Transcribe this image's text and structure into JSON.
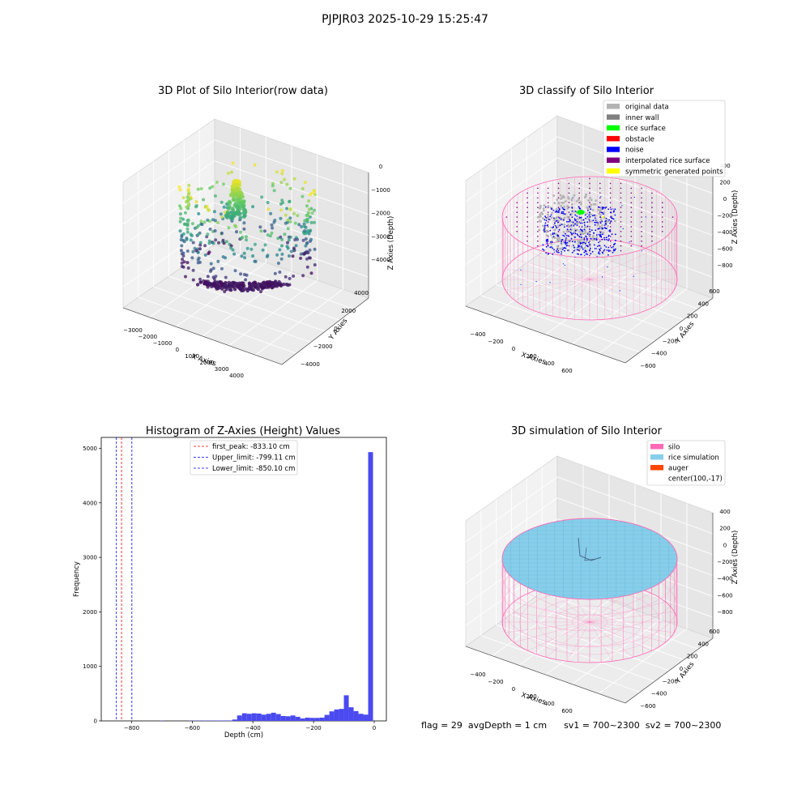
{
  "title": "PJPJR03 2025-10-29 15:25:47",
  "status": {
    "flag": "flag = 29",
    "avg_depth": "avgDepth = 1 cm",
    "sv1": "sv1 = 700~2300",
    "sv2": "sv2 = 700~2300"
  },
  "colors": {
    "histogram_bar": "#4a4af0",
    "silo": "#ff69b4",
    "rice_simulation": "#87ceeb",
    "auger": "#ff4500",
    "original_data": "#b3b3b3",
    "inner_wall": "#808080",
    "rice_surface": "#00ff00",
    "obstacle": "#ff0000",
    "noise": "#0000ff",
    "interpolated_rice_surface": "#800080",
    "symmetric_generated_points": "#ffff00",
    "first_peak_line": "#ff0000",
    "limit_line": "#0000ff"
  },
  "chart_data": [
    {
      "type": "scatter3d",
      "title": "3D Plot of Silo Interior(row data)",
      "xlabel": "X Axies",
      "ylabel": "Y Axies",
      "zlabel": "Z Axies (Depth)",
      "x_ticks": [
        "−3000",
        "−2000",
        "−1000",
        "0",
        "1000",
        "2000",
        "3000",
        "4000"
      ],
      "y_ticks": [
        "−4000",
        "−2000",
        "0",
        "2000",
        "4000"
      ],
      "z_ticks": [
        "0",
        "−1000",
        "−2000",
        "−3000",
        "−4000"
      ],
      "colormap": "viridis"
    },
    {
      "type": "scatter3d",
      "title": "3D classify of Silo Interior",
      "xlabel": "X Axies",
      "ylabel": "Y Axies",
      "zlabel": "Z Axies (Depth)",
      "x_ticks": [
        "−400",
        "−200",
        "0",
        "200",
        "400",
        "600"
      ],
      "y_ticks": [
        "−600",
        "−400",
        "−200",
        "0",
        "200",
        "400",
        "600"
      ],
      "z_ticks": [
        "400",
        "200",
        "0",
        "−200",
        "−400",
        "−600",
        "−800"
      ],
      "legend": [
        "original data",
        "inner wall",
        "rice surface",
        "obstacle",
        "noise",
        "interpolated rice surface",
        "symmetric generated points"
      ],
      "legend_placement": "upper-right"
    },
    {
      "type": "bar",
      "title": "Histogram of Z-Axies (Height) Values",
      "xlabel": "Depth (cm)",
      "ylabel": "Frequency",
      "xlim": [
        -900,
        40
      ],
      "ylim": [
        0,
        5200
      ],
      "x_ticks": [
        -800,
        -600,
        -400,
        -200,
        0
      ],
      "x_tick_labels": [
        "−800",
        "−600",
        "−400",
        "−200",
        "0"
      ],
      "y_ticks": [
        0,
        1000,
        2000,
        3000,
        4000,
        5000
      ],
      "bin_width": 16,
      "bins": [
        {
          "x": -700,
          "count": 5
        },
        {
          "x": -604,
          "count": 4
        },
        {
          "x": -588,
          "count": 5
        },
        {
          "x": -572,
          "count": 5
        },
        {
          "x": -556,
          "count": 6
        },
        {
          "x": -540,
          "count": 6
        },
        {
          "x": -524,
          "count": 7
        },
        {
          "x": -508,
          "count": 7
        },
        {
          "x": -492,
          "count": 8
        },
        {
          "x": -476,
          "count": 8
        },
        {
          "x": -460,
          "count": 25
        },
        {
          "x": -444,
          "count": 100
        },
        {
          "x": -428,
          "count": 140
        },
        {
          "x": -412,
          "count": 130
        },
        {
          "x": -396,
          "count": 140
        },
        {
          "x": -380,
          "count": 135
        },
        {
          "x": -364,
          "count": 115
        },
        {
          "x": -348,
          "count": 130
        },
        {
          "x": -332,
          "count": 150
        },
        {
          "x": -316,
          "count": 125
        },
        {
          "x": -300,
          "count": 90
        },
        {
          "x": -284,
          "count": 85
        },
        {
          "x": -268,
          "count": 100
        },
        {
          "x": -252,
          "count": 75
        },
        {
          "x": -236,
          "count": 45
        },
        {
          "x": -220,
          "count": 60
        },
        {
          "x": -204,
          "count": 55
        },
        {
          "x": -188,
          "count": 55
        },
        {
          "x": -172,
          "count": 60
        },
        {
          "x": -156,
          "count": 110
        },
        {
          "x": -140,
          "count": 175
        },
        {
          "x": -124,
          "count": 210
        },
        {
          "x": -108,
          "count": 220
        },
        {
          "x": -92,
          "count": 470
        },
        {
          "x": -76,
          "count": 250
        },
        {
          "x": -60,
          "count": 180
        },
        {
          "x": -44,
          "count": 130
        },
        {
          "x": -28,
          "count": 115
        },
        {
          "x": -12,
          "count": 4930
        }
      ],
      "vlines": [
        {
          "label": "first_peak: -833.10 cm",
          "x": -833.1,
          "color": "#ff0000"
        },
        {
          "label": "Upper_limit: -799.11 cm",
          "x": -799.11,
          "color": "#0000ff"
        },
        {
          "label": "Lower_limit: -850.10 cm",
          "x": -850.1,
          "color": "#0000ff"
        }
      ],
      "legend_placement": "upper-center"
    },
    {
      "type": "surface3d",
      "title": "3D simulation of Silo Interior",
      "xlabel": "X Axies",
      "ylabel": "Y Axies",
      "zlabel": "Z Axies (Depth)",
      "x_ticks": [
        "−400",
        "−200",
        "0",
        "200",
        "400",
        "600"
      ],
      "y_ticks": [
        "−600",
        "−400",
        "−200",
        "0",
        "200",
        "400",
        "600"
      ],
      "z_ticks": [
        "400",
        "200",
        "0",
        "−200",
        "−400",
        "−600",
        "−800"
      ],
      "legend": [
        "silo",
        "rice simulation",
        "auger",
        "center(100,-17)"
      ],
      "legend_placement": "upper-right"
    }
  ]
}
